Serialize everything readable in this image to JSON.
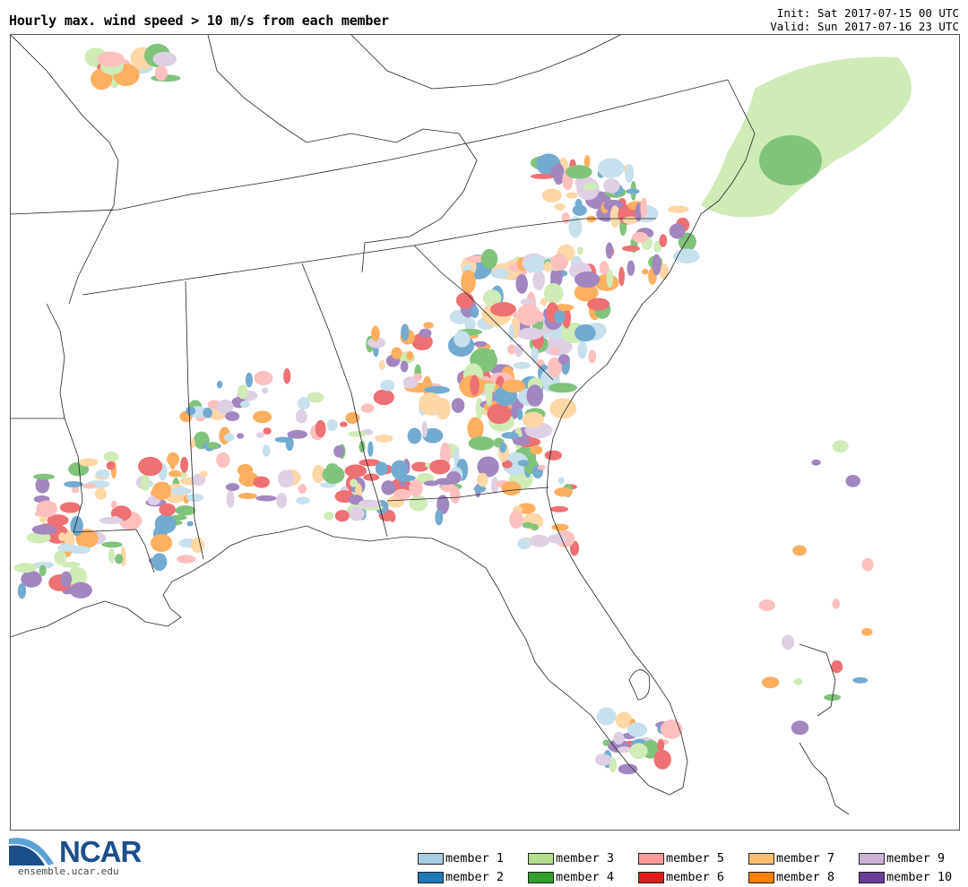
{
  "header": {
    "title": "Hourly max. wind speed > 10 m/s from each member",
    "init": "Init: Sat 2017-07-15 00 UTC",
    "valid": "Valid: Sun 2017-07-16 23 UTC"
  },
  "logo": {
    "text": "NCAR",
    "url": "ensemble.ucar.edu"
  },
  "legend": [
    {
      "label": "member 1",
      "color": "#a6cee3"
    },
    {
      "label": "member 2",
      "color": "#1f78b4"
    },
    {
      "label": "member 3",
      "color": "#b2df8a"
    },
    {
      "label": "member 4",
      "color": "#33a02c"
    },
    {
      "label": "member 5",
      "color": "#fb9a99"
    },
    {
      "label": "member 6",
      "color": "#e31a1c"
    },
    {
      "label": "member 7",
      "color": "#fdbf6f"
    },
    {
      "label": "member 8",
      "color": "#ff7f00"
    },
    {
      "label": "member 9",
      "color": "#cab2d6"
    },
    {
      "label": "member 10",
      "color": "#6a3d9a"
    }
  ]
}
